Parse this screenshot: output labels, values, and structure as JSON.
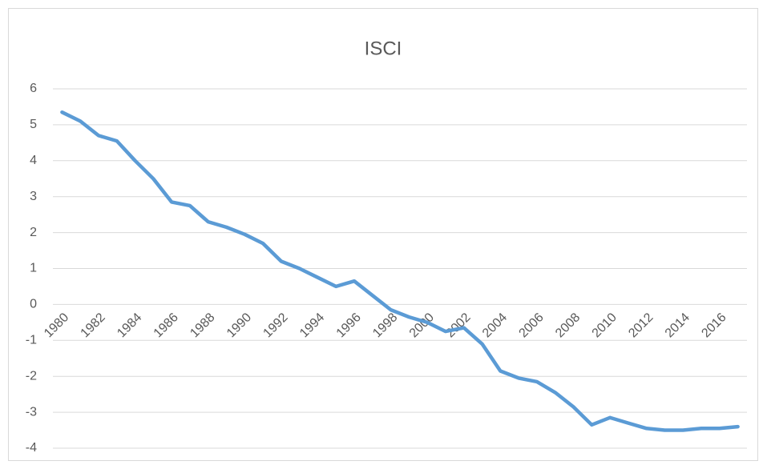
{
  "chart_data": {
    "type": "line",
    "title": "ISCI",
    "categories": [
      "1980",
      null,
      "1982",
      null,
      "1984",
      null,
      "1986",
      null,
      "1988",
      null,
      "1990",
      null,
      "1992",
      null,
      "1994",
      null,
      "1996",
      null,
      "1998",
      null,
      "2000",
      null,
      "2002",
      null,
      "2004",
      null,
      "2006",
      null,
      "2008",
      null,
      "2010",
      null,
      "2012",
      null,
      "2014",
      null,
      "2016",
      null
    ],
    "series": [
      {
        "name": "ISCI",
        "color": "#5b9bd5",
        "values": [
          5.35,
          5.1,
          4.7,
          4.55,
          4.0,
          3.5,
          2.85,
          2.75,
          2.3,
          2.15,
          1.95,
          1.7,
          1.2,
          1.0,
          0.75,
          0.5,
          0.65,
          0.25,
          -0.15,
          -0.35,
          -0.5,
          -0.75,
          -0.65,
          -1.1,
          -1.85,
          -2.05,
          -2.15,
          -2.45,
          -2.85,
          -3.35,
          -3.15,
          -3.3,
          -3.45,
          -3.5,
          -3.5,
          -3.45,
          -3.45,
          -3.4
        ]
      }
    ],
    "ylim": [
      -4,
      6
    ],
    "yticks": [
      -4,
      -3,
      -2,
      -1,
      0,
      1,
      2,
      3,
      4,
      5,
      6
    ],
    "grid": true
  }
}
